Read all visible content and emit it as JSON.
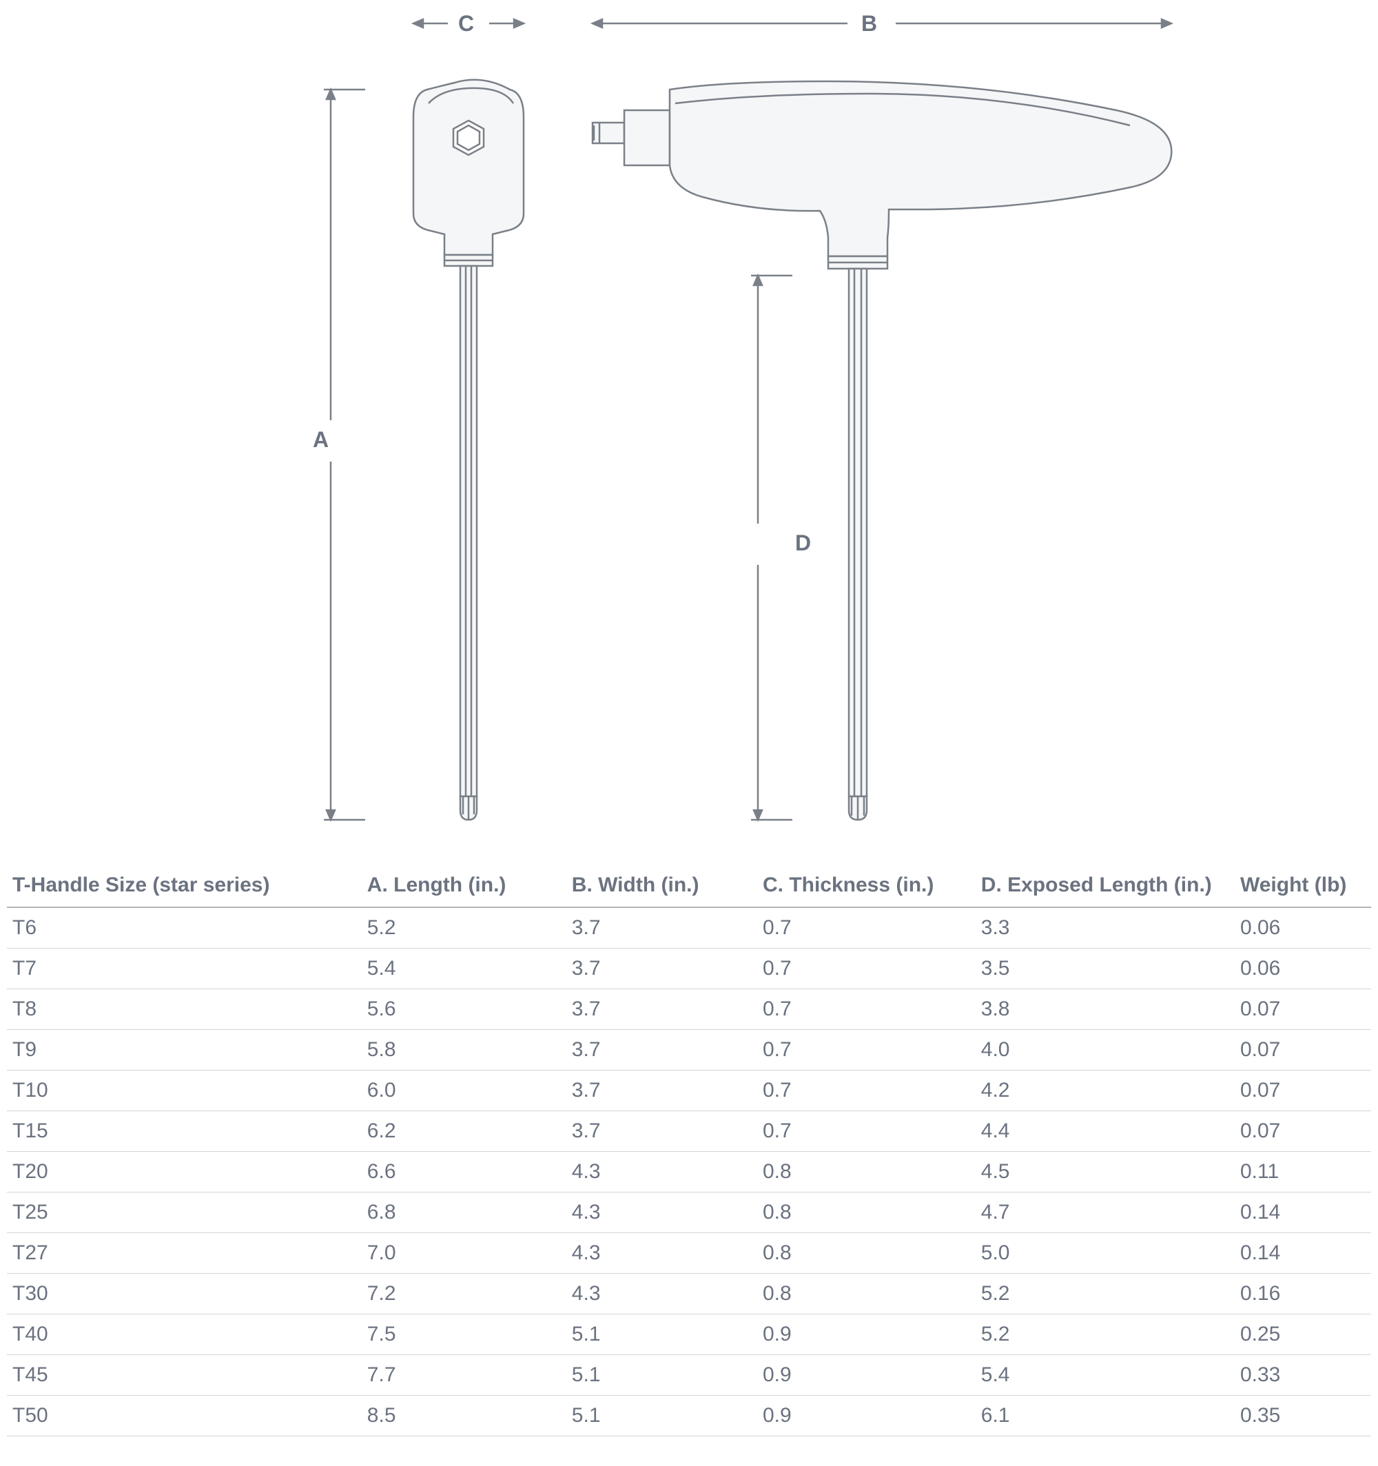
{
  "diagram": {
    "labels": {
      "A": "A",
      "B": "B",
      "C": "C",
      "D": "D"
    },
    "stroke_color": "#7a8088",
    "fill_color": "#f5f6f7",
    "bg": "#ffffff",
    "label_fontsize": 32,
    "label_fontweight": 700,
    "dim_line_stroke": "#7a8088"
  },
  "table": {
    "columns": [
      "T-Handle Size (star series)",
      "A. Length (in.)",
      "B. Width (in.)",
      "C. Thickness (in.)",
      "D. Exposed Length (in.)",
      "Weight (lb)"
    ],
    "rows": [
      [
        "T6",
        "5.2",
        "3.7",
        "0.7",
        "3.3",
        "0.06"
      ],
      [
        "T7",
        "5.4",
        "3.7",
        "0.7",
        "3.5",
        "0.06"
      ],
      [
        "T8",
        "5.6",
        "3.7",
        "0.7",
        "3.8",
        "0.07"
      ],
      [
        "T9",
        "5.8",
        "3.7",
        "0.7",
        "4.0",
        "0.07"
      ],
      [
        "T10",
        "6.0",
        "3.7",
        "0.7",
        "4.2",
        "0.07"
      ],
      [
        "T15",
        "6.2",
        "3.7",
        "0.7",
        "4.4",
        "0.07"
      ],
      [
        "T20",
        "6.6",
        "4.3",
        "0.8",
        "4.5",
        "0.11"
      ],
      [
        "T25",
        "6.8",
        "4.3",
        "0.8",
        "4.7",
        "0.14"
      ],
      [
        "T27",
        "7.0",
        "4.3",
        "0.8",
        "5.0",
        "0.14"
      ],
      [
        "T30",
        "7.2",
        "4.3",
        "0.8",
        "5.2",
        "0.16"
      ],
      [
        "T40",
        "7.5",
        "5.1",
        "0.9",
        "5.2",
        "0.25"
      ],
      [
        "T45",
        "7.7",
        "5.1",
        "0.9",
        "5.4",
        "0.33"
      ],
      [
        "T50",
        "8.5",
        "5.1",
        "0.9",
        "6.1",
        "0.35"
      ]
    ],
    "header_fontsize": 30,
    "cell_fontsize": 30,
    "text_color": "#6b7280",
    "header_border_color": "#b0b4b9",
    "row_border_color": "#d1d5db"
  }
}
